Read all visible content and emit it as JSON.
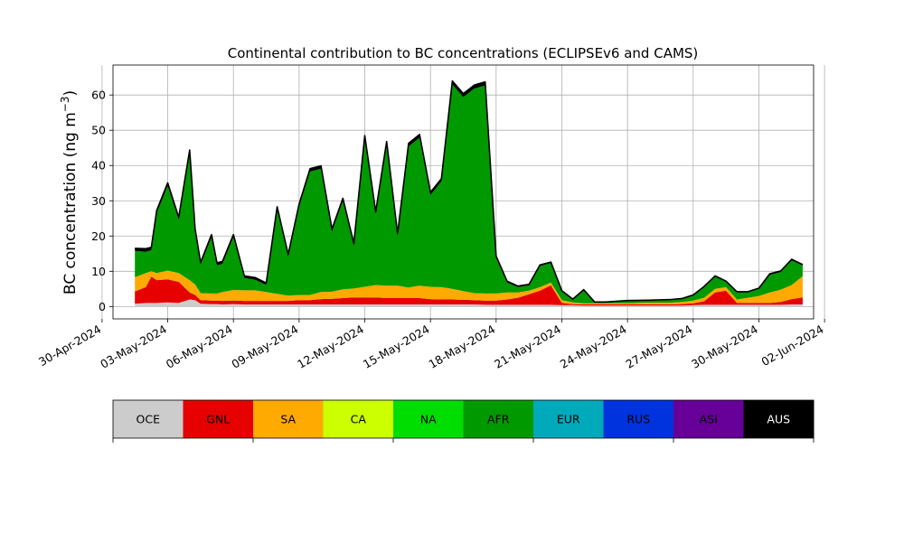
{
  "chart_data": {
    "type": "area",
    "title": "Continental contribution to BC concentrations (ECLIPSEv6 and CAMS)",
    "ylabel": "BC concentration (ng m",
    "ylabel_sup": "−3",
    "ylabel_close": ")",
    "ylim": [
      -3.5,
      68.5
    ],
    "yticks": [
      0,
      10,
      20,
      30,
      40,
      50,
      60
    ],
    "xlim": [
      "2024-04-30T12:00",
      "2024-06-01T12:00"
    ],
    "xticks": [
      "2024-04-30",
      "2024-05-03",
      "2024-05-06",
      "2024-05-09",
      "2024-05-12",
      "2024-05-15",
      "2024-05-18",
      "2024-05-21",
      "2024-05-24",
      "2024-05-27",
      "2024-05-30",
      "2024-06-02"
    ],
    "xtick_labels": [
      "30-Apr-2024",
      "03-May-2024",
      "06-May-2024",
      "09-May-2024",
      "12-May-2024",
      "15-May-2024",
      "18-May-2024",
      "21-May-2024",
      "24-May-2024",
      "27-May-2024",
      "30-May-2024",
      "02-Jun-2024"
    ],
    "grid": true,
    "x": [
      "2024-05-01T12:00",
      "2024-05-02T00:00",
      "2024-05-02T06:00",
      "2024-05-02T12:00",
      "2024-05-03T00:00",
      "2024-05-03T12:00",
      "2024-05-04T00:00",
      "2024-05-04T06:00",
      "2024-05-04T12:00",
      "2024-05-05T00:00",
      "2024-05-05T06:00",
      "2024-05-05T12:00",
      "2024-05-06T00:00",
      "2024-05-06T12:00",
      "2024-05-07T00:00",
      "2024-05-07T12:00",
      "2024-05-08T00:00",
      "2024-05-08T12:00",
      "2024-05-09T00:00",
      "2024-05-09T12:00",
      "2024-05-10T00:00",
      "2024-05-10T12:00",
      "2024-05-11T00:00",
      "2024-05-11T12:00",
      "2024-05-12T00:00",
      "2024-05-12T12:00",
      "2024-05-13T00:00",
      "2024-05-13T12:00",
      "2024-05-14T00:00",
      "2024-05-14T12:00",
      "2024-05-15T00:00",
      "2024-05-15T12:00",
      "2024-05-16T00:00",
      "2024-05-16T12:00",
      "2024-05-17T00:00",
      "2024-05-17T12:00",
      "2024-05-18T00:00",
      "2024-05-18T12:00",
      "2024-05-19T00:00",
      "2024-05-19T12:00",
      "2024-05-20T00:00",
      "2024-05-20T12:00",
      "2024-05-21T00:00",
      "2024-05-21T12:00",
      "2024-05-22T00:00",
      "2024-05-22T12:00",
      "2024-05-23T00:00",
      "2024-05-24T00:00",
      "2024-05-25T00:00",
      "2024-05-26T00:00",
      "2024-05-26T12:00",
      "2024-05-27T00:00",
      "2024-05-27T12:00",
      "2024-05-28T00:00",
      "2024-05-28T12:00",
      "2024-05-29T00:00",
      "2024-05-29T12:00",
      "2024-05-30T00:00",
      "2024-05-30T12:00",
      "2024-05-31T00:00",
      "2024-05-31T12:00",
      "2024-06-01T00:00"
    ],
    "series": [
      {
        "name": "OCE",
        "color": "#cccccc",
        "values": [
          0.8,
          1.0,
          1.0,
          1.0,
          1.2,
          1.0,
          2.0,
          1.8,
          0.8,
          0.7,
          0.7,
          0.6,
          0.7,
          0.6,
          0.6,
          0.6,
          0.6,
          0.6,
          0.6,
          0.6,
          0.6,
          0.6,
          0.6,
          0.6,
          0.6,
          0.6,
          0.6,
          0.6,
          0.6,
          0.6,
          0.6,
          0.6,
          0.6,
          0.6,
          0.6,
          0.5,
          0.5,
          0.5,
          0.5,
          0.5,
          0.5,
          0.5,
          0.4,
          0.4,
          0.3,
          0.3,
          0.3,
          0.3,
          0.3,
          0.3,
          0.3,
          0.4,
          0.5,
          0.5,
          0.5,
          0.5,
          0.5,
          0.5,
          0.5,
          0.5,
          0.6,
          0.6
        ]
      },
      {
        "name": "GNL",
        "color": "#e60000",
        "values": [
          3.5,
          4.5,
          7.5,
          6.5,
          6.5,
          6.0,
          2.0,
          1.5,
          1.0,
          1.0,
          1.0,
          1.0,
          1.0,
          1.0,
          1.0,
          1.0,
          1.0,
          1.0,
          1.2,
          1.2,
          1.5,
          1.6,
          1.8,
          2.0,
          2.0,
          2.0,
          1.8,
          1.8,
          1.8,
          1.8,
          1.5,
          1.4,
          1.4,
          1.3,
          1.2,
          1.2,
          1.2,
          1.5,
          2.0,
          3.0,
          4.0,
          5.5,
          0.6,
          0.3,
          0.3,
          0.3,
          0.3,
          0.3,
          0.3,
          0.3,
          0.4,
          0.5,
          1.0,
          3.5,
          4.0,
          0.5,
          0.5,
          0.5,
          0.5,
          0.8,
          1.5,
          2.0
        ]
      },
      {
        "name": "SA",
        "color": "#ffaa00",
        "values": [
          4.0,
          4.0,
          1.5,
          2.0,
          2.5,
          2.5,
          3.5,
          3.0,
          2.0,
          2.0,
          2.0,
          2.5,
          3.0,
          3.0,
          3.0,
          2.5,
          2.0,
          1.5,
          1.5,
          1.5,
          2.0,
          2.0,
          2.5,
          2.5,
          3.0,
          3.5,
          3.5,
          3.5,
          3.0,
          3.5,
          3.5,
          3.5,
          3.0,
          2.5,
          2.0,
          2.0,
          2.0,
          2.0,
          1.5,
          1.0,
          1.0,
          0.8,
          0.8,
          0.5,
          0.3,
          0.3,
          0.3,
          0.3,
          0.5,
          0.5,
          0.6,
          0.8,
          1.0,
          1.0,
          1.0,
          1.0,
          1.5,
          2.0,
          3.0,
          3.5,
          4.0,
          6.0
        ]
      },
      {
        "name": "CA",
        "color": "#ccff00",
        "values": [
          0,
          0,
          0,
          0,
          0,
          0,
          0,
          0,
          0,
          0,
          0,
          0,
          0,
          0,
          0,
          0,
          0,
          0,
          0,
          0,
          0,
          0,
          0,
          0,
          0,
          0,
          0,
          0,
          0,
          0,
          0,
          0,
          0,
          0,
          0,
          0,
          0,
          0,
          0,
          0,
          0,
          0,
          0,
          0,
          0,
          0,
          0,
          0,
          0,
          0,
          0,
          0,
          0,
          0,
          0,
          0,
          0,
          0,
          0,
          0,
          0,
          0
        ]
      },
      {
        "name": "NA",
        "color": "#00dd00",
        "values": [
          0,
          0,
          0,
          0,
          0,
          0,
          0,
          0,
          0,
          0,
          0,
          0,
          0,
          0,
          0,
          0,
          0,
          0,
          0,
          0,
          0,
          0,
          0,
          0,
          0,
          0,
          0,
          0,
          0,
          0,
          0,
          0,
          0,
          0,
          0,
          0,
          0,
          0,
          0,
          0,
          0,
          0,
          0,
          0,
          0,
          0,
          0,
          0,
          0,
          0,
          0,
          0,
          0,
          0,
          0,
          0,
          0,
          0,
          0,
          0,
          0,
          0
        ]
      },
      {
        "name": "AFR",
        "color": "#009900",
        "values": [
          7.5,
          6.0,
          6.0,
          17.0,
          24.0,
          15.0,
          36.0,
          15.0,
          8.0,
          16.0,
          8.0,
          8.0,
          15.0,
          3.5,
          3.0,
          2.0,
          24.0,
          11.0,
          25.0,
          35.0,
          35.0,
          17.0,
          25.0,
          12.0,
          42.0,
          20.0,
          40.0,
          14.0,
          40.0,
          42.0,
          26.0,
          30.0,
          58.0,
          55.0,
          58.0,
          59.0,
          10.0,
          2.8,
          1.5,
          1.5,
          6.0,
          5.5,
          2.5,
          0.7,
          3.7,
          0.3,
          0.3,
          0.7,
          0.6,
          0.8,
          0.9,
          1.5,
          3.0,
          3.5,
          1.5,
          2.0,
          1.5,
          2.0,
          5.0,
          5.0,
          7.0,
          3.0
        ]
      },
      {
        "name": "EUR",
        "color": "#00aabb",
        "values": [
          0,
          0,
          0,
          0,
          0,
          0,
          0,
          0,
          0,
          0,
          0,
          0,
          0,
          0,
          0,
          0,
          0,
          0,
          0,
          0,
          0,
          0,
          0,
          0,
          0,
          0,
          0,
          0,
          0,
          0,
          0,
          0,
          0,
          0,
          0,
          0,
          0,
          0,
          0,
          0,
          0,
          0,
          0,
          0,
          0,
          0,
          0,
          0,
          0,
          0,
          0,
          0,
          0,
          0,
          0,
          0,
          0,
          0,
          0,
          0,
          0,
          0
        ]
      },
      {
        "name": "RUS",
        "color": "#0033dd",
        "values": [
          0,
          0,
          0,
          0,
          0,
          0,
          0,
          0,
          0,
          0,
          0,
          0,
          0,
          0,
          0,
          0,
          0,
          0,
          0,
          0,
          0,
          0,
          0,
          0,
          0,
          0,
          0,
          0,
          0,
          0,
          0,
          0,
          0,
          0,
          0,
          0,
          0,
          0,
          0,
          0,
          0,
          0,
          0,
          0,
          0,
          0,
          0,
          0,
          0,
          0,
          0,
          0,
          0,
          0,
          0,
          0,
          0,
          0,
          0,
          0,
          0,
          0
        ]
      },
      {
        "name": "ASI",
        "color": "#660099",
        "values": [
          0,
          0,
          0,
          0,
          0,
          0,
          0,
          0,
          0,
          0,
          0,
          0,
          0,
          0,
          0,
          0,
          0,
          0,
          0,
          0,
          0,
          0,
          0,
          0,
          0,
          0,
          0,
          0,
          0,
          0,
          0,
          0,
          0,
          0,
          0,
          0,
          0,
          0,
          0,
          0,
          0,
          0,
          0,
          0,
          0,
          0,
          0,
          0,
          0,
          0,
          0,
          0,
          0,
          0,
          0,
          0,
          0,
          0,
          0,
          0,
          0,
          0
        ]
      },
      {
        "name": "AUS",
        "color": "#000000",
        "values": [
          0.7,
          0.9,
          0.8,
          0.8,
          0.9,
          0.8,
          0.9,
          0.8,
          0.7,
          0.7,
          0.7,
          0.7,
          0.7,
          0.6,
          0.6,
          0.6,
          0.7,
          0.7,
          0.8,
          0.8,
          0.8,
          0.8,
          0.8,
          0.8,
          0.9,
          0.8,
          0.9,
          0.8,
          0.9,
          0.9,
          0.8,
          0.8,
          1.0,
          1.0,
          1.0,
          1.0,
          0.6,
          0.4,
          0.3,
          0.3,
          0.3,
          0.3,
          0.2,
          0.2,
          0.2,
          0.1,
          0.1,
          0.1,
          0.1,
          0.1,
          0.1,
          0.1,
          0.2,
          0.2,
          0.2,
          0.2,
          0.2,
          0.2,
          0.3,
          0.3,
          0.3,
          0.3
        ]
      }
    ],
    "legend": {
      "placement": "bottom",
      "entries": [
        {
          "label": "OCE",
          "color": "#cccccc",
          "text_color": "#000000"
        },
        {
          "label": "GNL",
          "color": "#e60000",
          "text_color": "#000000"
        },
        {
          "label": "SA",
          "color": "#ffaa00",
          "text_color": "#000000"
        },
        {
          "label": "CA",
          "color": "#ccff00",
          "text_color": "#000000"
        },
        {
          "label": "NA",
          "color": "#00dd00",
          "text_color": "#000000"
        },
        {
          "label": "AFR",
          "color": "#009900",
          "text_color": "#000000"
        },
        {
          "label": "EUR",
          "color": "#00aabb",
          "text_color": "#000000"
        },
        {
          "label": "RUS",
          "color": "#0033dd",
          "text_color": "#000000"
        },
        {
          "label": "ASI",
          "color": "#660099",
          "text_color": "#000000"
        },
        {
          "label": "AUS",
          "color": "#000000",
          "text_color": "#ffffff"
        }
      ]
    }
  }
}
